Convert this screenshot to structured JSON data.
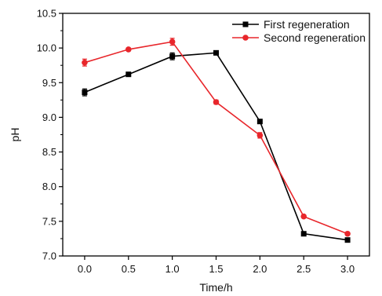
{
  "chart_data": {
    "type": "line",
    "title": "",
    "xlabel": "Time/h",
    "ylabel": "pH",
    "xlim": [
      -0.25,
      3.25
    ],
    "ylim": [
      7.0,
      10.5
    ],
    "xticks": [
      "0.0",
      "0.5",
      "1.0",
      "1.5",
      "2.0",
      "2.5",
      "3.0"
    ],
    "yticks": [
      "7.0",
      "7.5",
      "8.0",
      "8.5",
      "9.0",
      "9.5",
      "10.0",
      "10.5"
    ],
    "grid": false,
    "legend_position": "top-right",
    "series": [
      {
        "name": "First regeneration",
        "color": "#000000",
        "marker": "square",
        "x": [
          0.0,
          0.5,
          1.0,
          1.5,
          2.0,
          2.5,
          3.0
        ],
        "y": [
          9.36,
          9.62,
          9.88,
          9.93,
          8.94,
          7.32,
          7.23
        ],
        "err": [
          0.05,
          0.02,
          0.05,
          0.02,
          0.03,
          0.02,
          0.03
        ]
      },
      {
        "name": "Second regeneration",
        "color": "#e8262b",
        "marker": "circle",
        "x": [
          0.0,
          0.5,
          1.0,
          1.5,
          2.0,
          2.5,
          3.0
        ],
        "y": [
          9.79,
          9.98,
          10.09,
          9.22,
          8.74,
          7.57,
          7.32
        ],
        "err": [
          0.05,
          0.02,
          0.05,
          0.03,
          0.04,
          0.02,
          0.02
        ]
      }
    ]
  }
}
